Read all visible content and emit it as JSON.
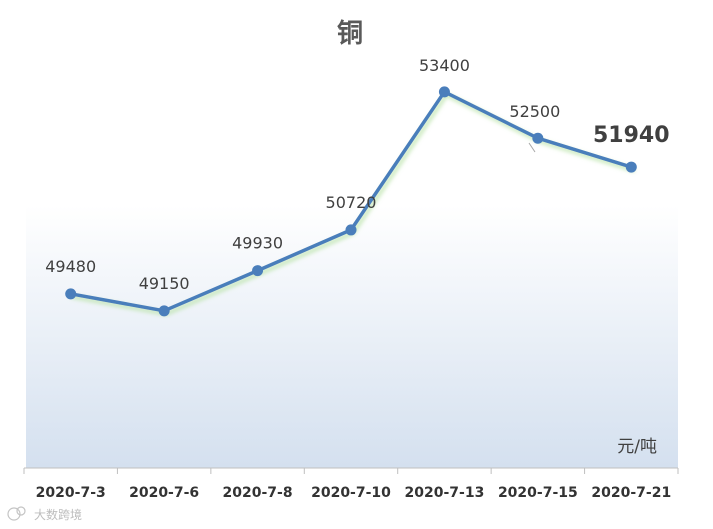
{
  "chart_data": {
    "type": "line",
    "title": "铜",
    "categories": [
      "2020-7-3",
      "2020-7-6",
      "2020-7-8",
      "2020-7-10",
      "2020-7-13",
      "2020-7-15",
      "2020-7-21"
    ],
    "series": [
      {
        "values": [
          49480,
          49150,
          49930,
          50720,
          53400,
          52500,
          51940
        ]
      }
    ],
    "data_labels": [
      "49480",
      "49150",
      "49930",
      "50720",
      "53400",
      "52500",
      "51940"
    ],
    "unit_label": "元/吨",
    "ylim": [
      46100,
      54600
    ],
    "grid": false,
    "line_color": "#4A7EBB",
    "highlight_last_label": true
  },
  "watermark": {
    "text": "大数跨境"
  }
}
